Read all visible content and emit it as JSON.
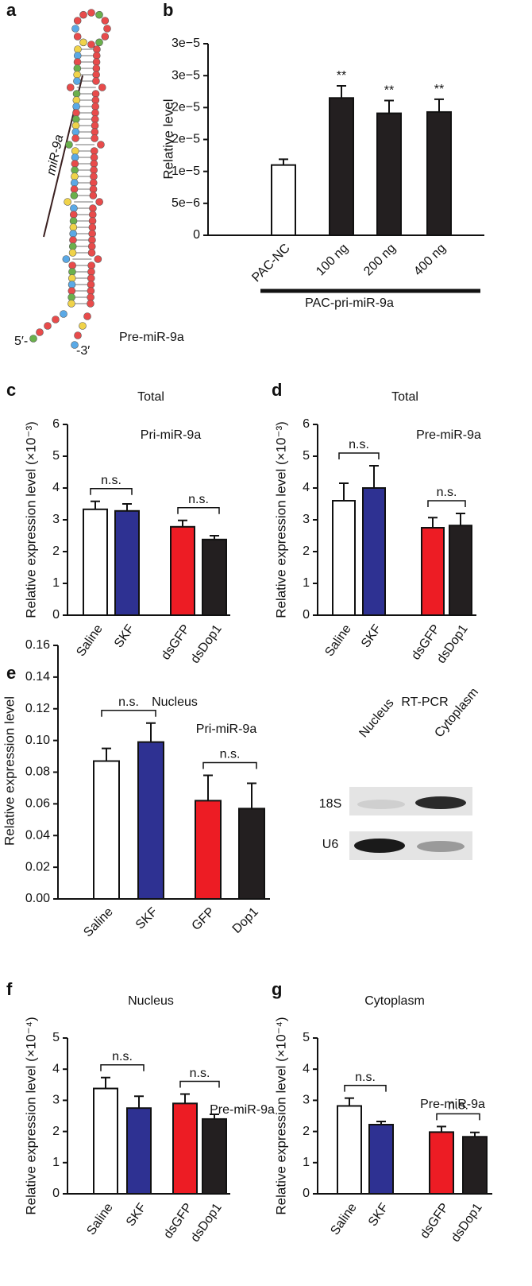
{
  "diagram": {
    "panel": "a",
    "stem_label": "miR-9a",
    "name": "Pre-miR-9a",
    "five_prime": "5′-",
    "three_prime": "-3′"
  },
  "chart_data": [
    {
      "type": "bar",
      "panel": "b",
      "ylabel": "Relative level",
      "categories": [
        "PAC-NC",
        "100 ng",
        "200 ng",
        "400 ng"
      ],
      "values": [
        1.1e-05,
        2.15e-05,
        1.91e-05,
        1.93e-05
      ],
      "errors": [
        9e-07,
        1.9e-06,
        2e-06,
        2e-06
      ],
      "colors": [
        "#ffffff",
        "#231f20",
        "#231f20",
        "#231f20"
      ],
      "value_annotations": [
        null,
        "**",
        "**",
        "**"
      ],
      "group_label": "PAC-pri-miR-9a",
      "ylim": [
        0,
        3e-05
      ],
      "yticks": [
        {
          "value": 0,
          "label": "0"
        },
        {
          "value": 5e-06,
          "label": "5e−6"
        },
        {
          "value": 1e-05,
          "label": "1e−5"
        },
        {
          "value": 1.5e-05,
          "label": "2e−5"
        },
        {
          "value": 2e-05,
          "label": "2e−5"
        },
        {
          "value": 2.5e-05,
          "label": "3e−5"
        },
        {
          "value": 3e-05,
          "label": "3e−5"
        }
      ]
    },
    {
      "type": "bar",
      "panel": "c",
      "title": "Total",
      "subtitle": "Pri-miR-9a",
      "ylabel": "Relative expression level (×10⁻³)",
      "categories": [
        "Saline",
        "SKF",
        "dsGFP",
        "dsDop1"
      ],
      "values": [
        3.33,
        3.28,
        2.78,
        2.38
      ],
      "errors": [
        0.25,
        0.22,
        0.2,
        0.12
      ],
      "colors": [
        "#ffffff",
        "#2e3192",
        "#ed1c24",
        "#231f20"
      ],
      "brackets": [
        {
          "label": "n.s.",
          "between": [
            "Saline",
            "SKF"
          ]
        },
        {
          "label": "n.s.",
          "between": [
            "dsGFP",
            "dsDop1"
          ]
        }
      ],
      "ylim": [
        0,
        6
      ],
      "yticks": [
        0,
        1,
        2,
        3,
        4,
        5,
        6
      ]
    },
    {
      "type": "bar",
      "panel": "d",
      "title": "Total",
      "subtitle": "Pre-miR-9a",
      "ylabel": "Relative expression level (×10⁻³)",
      "categories": [
        "Saline",
        "SKF",
        "dsGFP",
        "dsDop1"
      ],
      "values": [
        3.6,
        4.0,
        2.75,
        2.82
      ],
      "errors": [
        0.55,
        0.7,
        0.32,
        0.38
      ],
      "colors": [
        "#ffffff",
        "#2e3192",
        "#ed1c24",
        "#231f20"
      ],
      "brackets": [
        {
          "label": "n.s.",
          "between": [
            "Saline",
            "SKF"
          ]
        },
        {
          "label": "n.s.",
          "between": [
            "dsGFP",
            "dsDop1"
          ]
        }
      ],
      "ylim": [
        0,
        6
      ],
      "yticks": [
        0,
        1,
        2,
        3,
        4,
        5,
        6
      ]
    },
    {
      "type": "bar",
      "panel": "e",
      "title": "Nucleus",
      "subtitle": "Pri-miR-9a",
      "ylabel": "Relative expression level",
      "categories": [
        "Saline",
        "SKF",
        "GFP",
        "Dop1"
      ],
      "values": [
        0.087,
        0.099,
        0.062,
        0.057
      ],
      "errors": [
        0.008,
        0.012,
        0.016,
        0.016
      ],
      "colors": [
        "#ffffff",
        "#2e3192",
        "#ed1c24",
        "#231f20"
      ],
      "brackets": [
        {
          "label": "n.s.",
          "between": [
            "Saline",
            "SKF"
          ]
        },
        {
          "label": "n.s.",
          "between": [
            "GFP",
            "Dop1"
          ]
        }
      ],
      "ylim": [
        0,
        0.16
      ],
      "yticks": [
        {
          "value": 0,
          "label": "0.00"
        },
        {
          "value": 0.02,
          "label": "0.02"
        },
        {
          "value": 0.04,
          "label": "0.04"
        },
        {
          "value": 0.06,
          "label": "0.06"
        },
        {
          "value": 0.08,
          "label": "0.08"
        },
        {
          "value": 0.1,
          "label": "0.10"
        },
        {
          "value": 0.12,
          "label": "0.12"
        },
        {
          "value": 0.14,
          "label": "0.14"
        },
        {
          "value": 0.16,
          "label": "0.16"
        }
      ],
      "inset": {
        "title": "RT-PCR",
        "columns": [
          "Nucleus",
          "Cytoplasm"
        ],
        "rows": [
          "18S",
          "U6"
        ]
      }
    },
    {
      "type": "bar",
      "panel": "f",
      "title": "Nucleus",
      "subtitle": "Pre-miR-9a",
      "ylabel": "Relative expression level (×10⁻⁴)",
      "categories": [
        "Saline",
        "SKF",
        "dsGFP",
        "dsDop1"
      ],
      "values": [
        3.38,
        2.75,
        2.9,
        2.4
      ],
      "errors": [
        0.35,
        0.38,
        0.3,
        0.15
      ],
      "colors": [
        "#ffffff",
        "#2e3192",
        "#ed1c24",
        "#231f20"
      ],
      "brackets": [
        {
          "label": "n.s.",
          "between": [
            "Saline",
            "SKF"
          ]
        },
        {
          "label": "n.s.",
          "between": [
            "dsGFP",
            "dsDop1"
          ]
        }
      ],
      "ylim": [
        0,
        5
      ],
      "yticks": [
        0,
        1,
        2,
        3,
        4,
        5
      ]
    },
    {
      "type": "bar",
      "panel": "g",
      "title": "Cytoplasm",
      "subtitle": "Pre-miR-9a",
      "ylabel": "Relative expression level (×10⁻⁴)",
      "categories": [
        "Saline",
        "SKF",
        "dsGFP",
        "dsDop1"
      ],
      "values": [
        2.82,
        2.22,
        1.98,
        1.83
      ],
      "errors": [
        0.25,
        0.1,
        0.18,
        0.14
      ],
      "colors": [
        "#ffffff",
        "#2e3192",
        "#ed1c24",
        "#231f20"
      ],
      "brackets": [
        {
          "label": "n.s.",
          "between": [
            "Saline",
            "SKF"
          ]
        },
        {
          "label": "n.s.",
          "between": [
            "dsGFP",
            "dsDop1"
          ]
        }
      ],
      "ylim": [
        0,
        5
      ],
      "yticks": [
        0,
        1,
        2,
        3,
        4,
        5
      ]
    }
  ]
}
